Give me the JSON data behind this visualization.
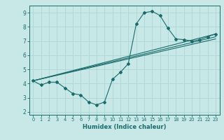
{
  "xlabel": "Humidex (Indice chaleur)",
  "ylabel": "",
  "background_color": "#c8e8e8",
  "grid_color": "#b0d8d8",
  "line_color": "#1a6b6b",
  "xlim": [
    -0.5,
    23.5
  ],
  "ylim": [
    1.8,
    9.5
  ],
  "xticks": [
    0,
    1,
    2,
    3,
    4,
    5,
    6,
    7,
    8,
    9,
    10,
    11,
    12,
    13,
    14,
    15,
    16,
    17,
    18,
    19,
    20,
    21,
    22,
    23
  ],
  "yticks": [
    2,
    3,
    4,
    5,
    6,
    7,
    8,
    9
  ],
  "curve1_x": [
    0,
    1,
    2,
    3,
    4,
    5,
    6,
    7,
    8,
    9,
    10,
    11,
    12,
    13,
    14,
    15,
    16,
    17,
    18,
    19,
    20,
    21,
    22,
    23
  ],
  "curve1_y": [
    4.2,
    3.9,
    4.1,
    4.1,
    3.7,
    3.3,
    3.2,
    2.7,
    2.5,
    2.7,
    4.3,
    4.8,
    5.4,
    8.2,
    9.0,
    9.1,
    8.8,
    7.9,
    7.15,
    7.1,
    7.0,
    7.1,
    7.3,
    7.5
  ],
  "line1_x": [
    0,
    23
  ],
  "line1_y": [
    4.2,
    7.5
  ],
  "line2_x": [
    0,
    23
  ],
  "line2_y": [
    4.2,
    7.3
  ],
  "line3_x": [
    0,
    23
  ],
  "line3_y": [
    4.2,
    7.15
  ]
}
